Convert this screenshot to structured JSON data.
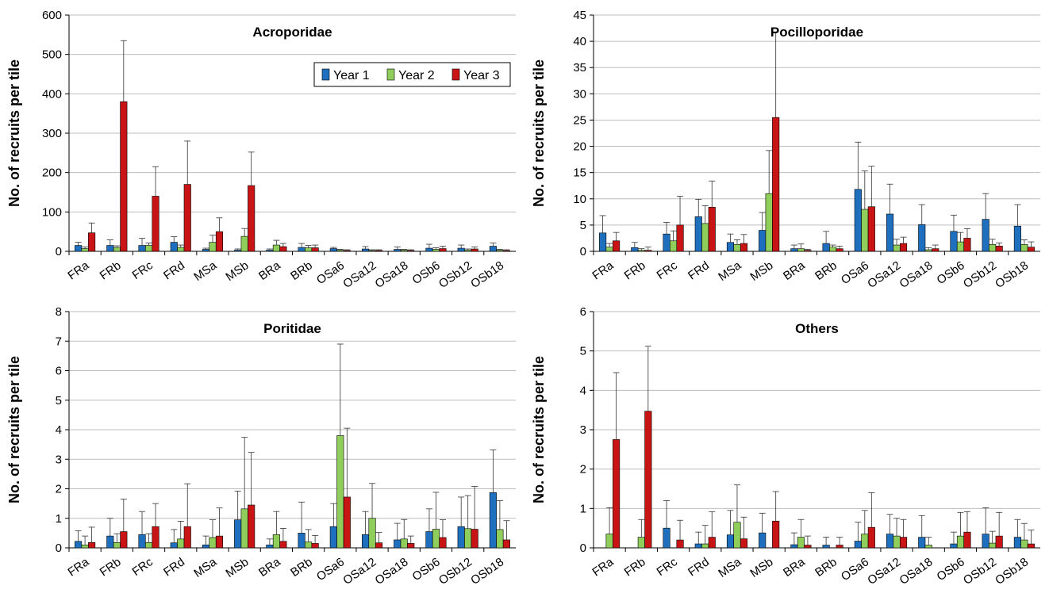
{
  "colors": {
    "year1": "#1f6fbf",
    "year2": "#8fce5a",
    "year3": "#c81414"
  },
  "legend": [
    "Year 1",
    "Year 2",
    "Year 3"
  ],
  "chart_data": [
    {
      "type": "bar",
      "title": "Acroporidae",
      "ylabel": "No. of recruits per tile",
      "ylim": [
        0,
        600
      ],
      "yticks": [
        0,
        100,
        200,
        300,
        400,
        500,
        600
      ],
      "grid": true,
      "legend_position": "top-right",
      "categories": [
        "FRa",
        "FRb",
        "FRc",
        "FRd",
        "MSa",
        "MSb",
        "BRa",
        "BRb",
        "OSa6",
        "OSa12",
        "OSa18",
        "OSb6",
        "OSb12",
        "OSb18"
      ],
      "series": [
        {
          "name": "Year 1",
          "values": [
            15,
            15,
            15,
            23,
            5,
            3,
            3,
            10,
            7,
            6,
            5,
            8,
            8,
            13
          ],
          "errors": [
            8,
            14,
            18,
            14,
            3,
            3,
            3,
            10,
            3,
            6,
            6,
            10,
            8,
            8
          ]
        },
        {
          "name": "Year 2",
          "values": [
            7,
            10,
            15,
            10,
            23,
            38,
            16,
            9,
            3,
            2,
            3,
            5,
            3,
            3
          ],
          "errors": [
            4,
            4,
            6,
            6,
            18,
            20,
            12,
            6,
            2,
            2,
            2,
            4,
            3,
            2
          ]
        },
        {
          "name": "Year 3",
          "values": [
            47,
            380,
            140,
            170,
            50,
            167,
            12,
            9,
            2,
            2,
            2,
            7,
            6,
            2
          ],
          "errors": [
            25,
            155,
            75,
            110,
            35,
            85,
            8,
            7,
            2,
            2,
            2,
            6,
            5,
            2
          ]
        }
      ]
    },
    {
      "type": "bar",
      "title": "Pocilloporidae",
      "ylabel": "No. of recruits per tile",
      "ylim": [
        0,
        45
      ],
      "yticks": [
        0,
        5,
        10,
        15,
        20,
        25,
        30,
        35,
        40,
        45
      ],
      "grid": true,
      "categories": [
        "FRa",
        "FRb",
        "FRc",
        "FRd",
        "MSa",
        "MSb",
        "BRa",
        "BRb",
        "OSa6",
        "OSa12",
        "OSa18",
        "OSb6",
        "OSb12",
        "OSb18"
      ],
      "series": [
        {
          "name": "Year 1",
          "values": [
            3.5,
            0.7,
            3.3,
            6.6,
            1.7,
            4.0,
            0.5,
            1.5,
            11.8,
            7.1,
            5.1,
            3.8,
            6.1,
            4.8
          ],
          "errors": [
            3.3,
            1.0,
            2.2,
            3.3,
            1.6,
            3.4,
            0.7,
            2.3,
            9.0,
            5.7,
            3.8,
            3.1,
            4.9,
            4.1
          ]
        },
        {
          "name": "Year 2",
          "values": [
            0.8,
            0.2,
            2.0,
            5.3,
            1.3,
            11.0,
            0.5,
            0.8,
            8.0,
            1.2,
            0.3,
            1.8,
            1.3,
            1.3
          ],
          "errors": [
            0.7,
            0.3,
            1.9,
            3.4,
            0.9,
            8.2,
            0.9,
            0.4,
            7.3,
            1.1,
            0.4,
            1.8,
            1.0,
            0.9
          ]
        },
        {
          "name": "Year 3",
          "values": [
            2.0,
            0.2,
            5.0,
            8.4,
            1.5,
            25.5,
            0.2,
            0.5,
            8.5,
            1.5,
            0.5,
            2.5,
            1.0,
            0.8
          ],
          "errors": [
            1.6,
            0.6,
            5.5,
            5.0,
            1.7,
            16.3,
            0.2,
            0.5,
            7.7,
            1.2,
            0.7,
            1.8,
            0.6,
            1.0
          ]
        }
      ]
    },
    {
      "type": "bar",
      "title": "Poritidae",
      "ylabel": "No. of recruits per tile",
      "ylim": [
        0,
        8
      ],
      "yticks": [
        0,
        1,
        2,
        3,
        4,
        5,
        6,
        7,
        8
      ],
      "grid": true,
      "categories": [
        "FRa",
        "FRb",
        "FRc",
        "FRd",
        "MSa",
        "MSb",
        "BRa",
        "BRb",
        "OSa6",
        "OSa12",
        "OSa18",
        "OSb6",
        "OSb12",
        "OSb18"
      ],
      "series": [
        {
          "name": "Year 1",
          "values": [
            0.22,
            0.4,
            0.45,
            0.17,
            0.1,
            0.95,
            0.1,
            0.5,
            0.72,
            0.45,
            0.27,
            0.55,
            0.72,
            1.87
          ],
          "errors": [
            0.36,
            0.6,
            0.78,
            0.45,
            0.3,
            0.97,
            0.2,
            1.05,
            0.78,
            0.78,
            0.56,
            0.77,
            1.0,
            1.45
          ]
        },
        {
          "name": "Year 2",
          "values": [
            0.1,
            0.18,
            0.18,
            0.3,
            0.35,
            1.32,
            0.45,
            0.2,
            3.8,
            1.0,
            0.3,
            0.63,
            0.65,
            0.62
          ],
          "errors": [
            0.3,
            0.3,
            0.3,
            0.6,
            0.6,
            2.42,
            0.78,
            0.42,
            3.1,
            1.18,
            0.66,
            1.25,
            1.12,
            0.98
          ]
        },
        {
          "name": "Year 3",
          "values": [
            0.18,
            0.55,
            0.72,
            0.72,
            0.4,
            1.45,
            0.22,
            0.15,
            1.72,
            0.17,
            0.15,
            0.35,
            0.63,
            0.27
          ],
          "errors": [
            0.52,
            1.1,
            0.78,
            1.45,
            0.95,
            1.78,
            0.44,
            0.27,
            2.33,
            0.35,
            0.25,
            0.6,
            1.45,
            0.65
          ]
        }
      ]
    },
    {
      "type": "bar",
      "title": "Others",
      "ylabel": "No. of recruits per tile",
      "ylim": [
        0,
        6
      ],
      "yticks": [
        0,
        1,
        2,
        3,
        4,
        5,
        6
      ],
      "grid": true,
      "categories": [
        "FRa",
        "FRb",
        "FRc",
        "FRd",
        "MSa",
        "MSb",
        "BRa",
        "BRb",
        "OSa6",
        "OSa12",
        "OSa18",
        "OSb6",
        "OSb12",
        "OSb18"
      ],
      "series": [
        {
          "name": "Year 1",
          "values": [
            0,
            0,
            0.5,
            0.1,
            0.33,
            0.38,
            0.08,
            0.07,
            0.17,
            0.35,
            0.27,
            0.1,
            0.35,
            0.27
          ],
          "errors": [
            0,
            0,
            0.7,
            0.3,
            0.62,
            0.5,
            0.3,
            0.2,
            0.48,
            0.5,
            0.55,
            0.3,
            0.67,
            0.45
          ]
        },
        {
          "name": "Year 2",
          "values": [
            0.35,
            0.27,
            0,
            0.1,
            0.65,
            0,
            0.27,
            0,
            0.35,
            0.3,
            0.07,
            0.3,
            0.12,
            0.2
          ],
          "errors": [
            0.67,
            0.45,
            0,
            0.47,
            0.95,
            0,
            0.45,
            0,
            0.6,
            0.45,
            0.2,
            0.6,
            0.3,
            0.42
          ]
        },
        {
          "name": "Year 3",
          "values": [
            2.75,
            3.47,
            0.2,
            0.27,
            0.23,
            0.68,
            0.07,
            0.07,
            0.52,
            0.27,
            0,
            0.4,
            0.3,
            0.1
          ],
          "errors": [
            1.7,
            1.65,
            0.5,
            0.65,
            0.55,
            0.75,
            0.23,
            0.2,
            0.88,
            0.45,
            0,
            0.52,
            0.6,
            0.35
          ]
        }
      ]
    }
  ]
}
